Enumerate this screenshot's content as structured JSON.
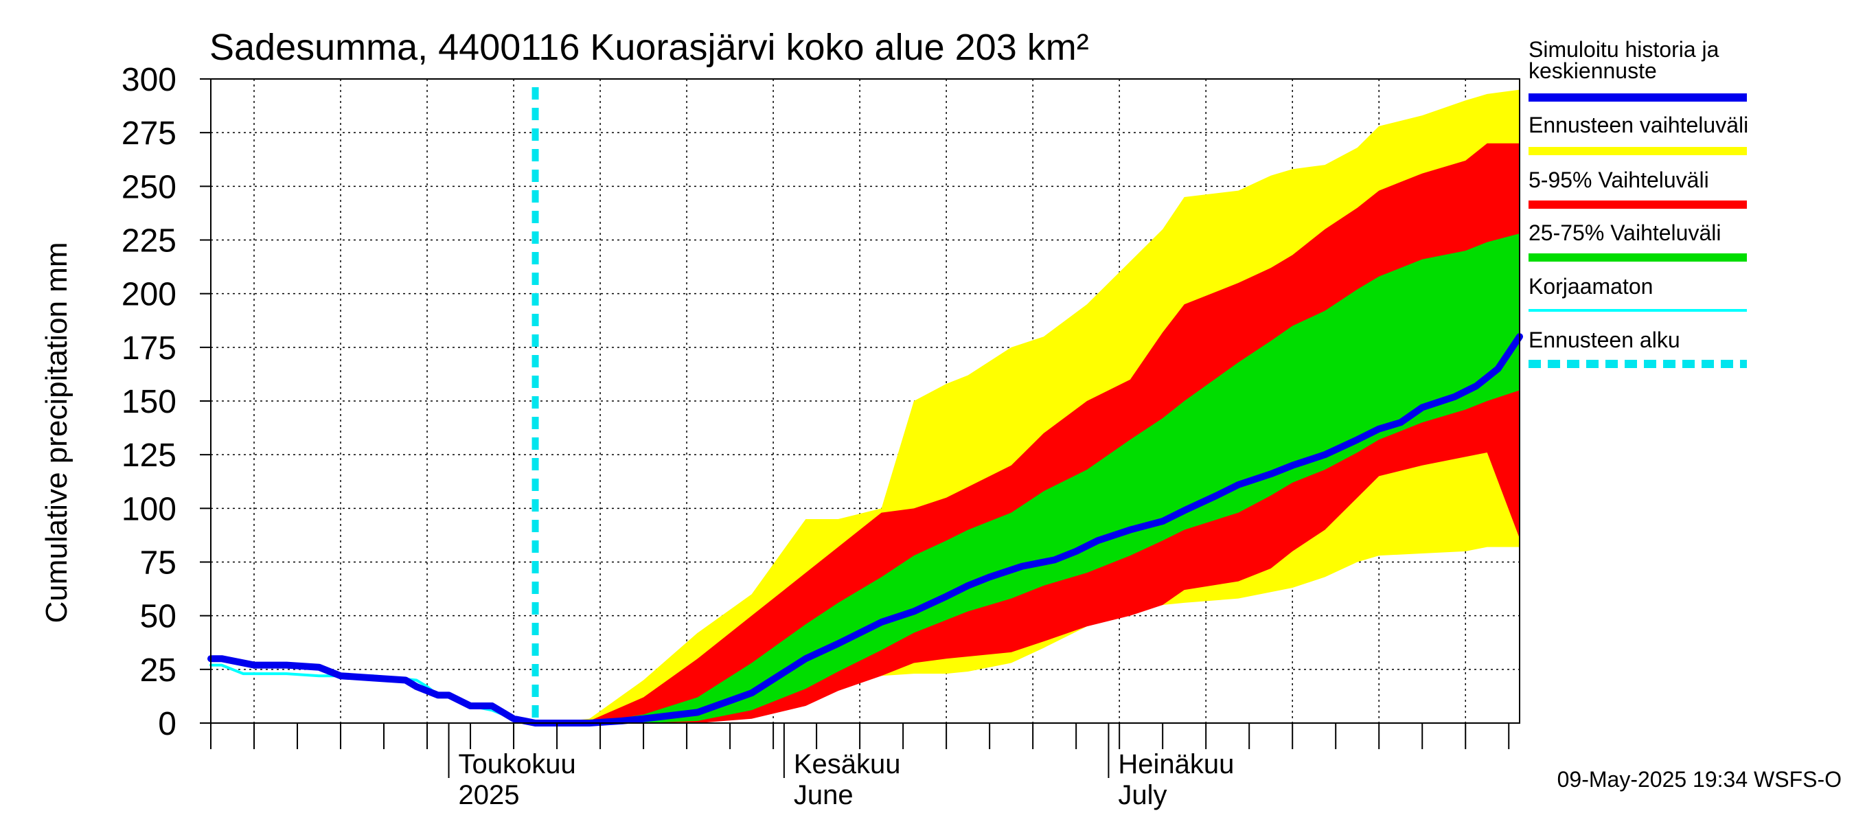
{
  "chart_data": {
    "type": "area",
    "title": "Sadesumma, 4400116 Kuorasjärvi koko alue 203 km²",
    "ylabel": "Cumulative precipitation    mm",
    "xlabel": "",
    "ylim": [
      0,
      300
    ],
    "y_ticks": [
      0,
      25,
      50,
      75,
      100,
      125,
      150,
      175,
      200,
      225,
      250,
      275,
      300
    ],
    "x_range_days": [
      0,
      121
    ],
    "x_axis": {
      "months": [
        {
          "label_fi": "Toukokuu",
          "label_en": "2025",
          "day": 22
        },
        {
          "label_fi": "Kesäkuu",
          "label_en": "June",
          "day": 53
        },
        {
          "label_fi": "Heinäkuu",
          "label_en": "July",
          "day": 83
        }
      ]
    },
    "grid": true,
    "legend_placement": "right",
    "timestamp": "09-May-2025 19:34 WSFS-O",
    "forecast_start_day": 30,
    "series": [
      {
        "name": "Ennusteen vaihteluväli",
        "kind": "band",
        "color": "#ffff00",
        "x": [
          31,
          35,
          40,
          45,
          50,
          55,
          58,
          62,
          65,
          68,
          70,
          74,
          77,
          81,
          85,
          88,
          90,
          95,
          98,
          100,
          103,
          106,
          108,
          112,
          116,
          118,
          121
        ],
        "lo": [
          0,
          0,
          0,
          1,
          4,
          12,
          18,
          22,
          23,
          23,
          24,
          28,
          35,
          45,
          52,
          55,
          56,
          58,
          61,
          63,
          68,
          75,
          78,
          79,
          80,
          82,
          82
        ],
        "hi": [
          0,
          2,
          20,
          42,
          60,
          95,
          95,
          100,
          150,
          158,
          162,
          175,
          180,
          195,
          215,
          230,
          245,
          248,
          255,
          258,
          260,
          268,
          278,
          283,
          290,
          293,
          295
        ]
      },
      {
        "name": "5-95% Vaihteluväli",
        "kind": "band",
        "color": "#ff0000",
        "x": [
          31,
          35,
          40,
          45,
          50,
          55,
          58,
          62,
          65,
          68,
          70,
          74,
          77,
          81,
          85,
          88,
          90,
          95,
          98,
          100,
          103,
          106,
          108,
          112,
          116,
          118,
          121
        ],
        "lo": [
          0,
          0,
          0,
          0,
          2,
          8,
          15,
          22,
          28,
          30,
          31,
          33,
          38,
          45,
          50,
          55,
          62,
          66,
          72,
          80,
          90,
          105,
          115,
          120,
          124,
          126,
          86
        ],
        "hi": [
          0,
          1,
          12,
          30,
          50,
          70,
          82,
          98,
          100,
          105,
          110,
          120,
          135,
          150,
          160,
          182,
          195,
          205,
          212,
          218,
          230,
          240,
          248,
          256,
          262,
          270,
          270
        ]
      },
      {
        "name": "25-75% Vaihteluväli",
        "kind": "band",
        "color": "#00dd00",
        "x": [
          31,
          35,
          40,
          45,
          50,
          55,
          58,
          62,
          65,
          68,
          70,
          74,
          77,
          81,
          85,
          88,
          90,
          95,
          98,
          100,
          103,
          106,
          108,
          112,
          116,
          118,
          121
        ],
        "lo": [
          0,
          0,
          0,
          1,
          6,
          16,
          24,
          34,
          42,
          48,
          52,
          58,
          64,
          70,
          78,
          85,
          90,
          98,
          106,
          112,
          118,
          126,
          132,
          140,
          146,
          150,
          155
        ],
        "hi": [
          0,
          0,
          4,
          12,
          28,
          46,
          56,
          68,
          78,
          85,
          90,
          98,
          108,
          118,
          132,
          142,
          150,
          168,
          178,
          185,
          192,
          202,
          208,
          216,
          220,
          224,
          228
        ]
      },
      {
        "name": "Korjaamaton",
        "kind": "line",
        "color": "#00ffff",
        "x": [
          0,
          1,
          3,
          7,
          10,
          15,
          19,
          20,
          21,
          22,
          24,
          26,
          28,
          30
        ],
        "y": [
          27,
          27,
          23,
          23,
          22,
          22,
          20,
          17,
          13,
          12,
          8,
          6,
          2,
          0
        ]
      },
      {
        "name": "Simuloitu historia ja keskiennuste",
        "kind": "line",
        "color": "#0000ee",
        "x": [
          0,
          1,
          4,
          7,
          10,
          12,
          15,
          18,
          19,
          20,
          21,
          22,
          24,
          26,
          28,
          30,
          33,
          35,
          38,
          40,
          45,
          50,
          55,
          58,
          62,
          65,
          68,
          70,
          72,
          75,
          78,
          80,
          82,
          85,
          88,
          90,
          93,
          95,
          98,
          100,
          103,
          106,
          108,
          110,
          112,
          115,
          117,
          119,
          121
        ],
        "y": [
          30,
          30,
          27,
          27,
          26,
          22,
          21,
          20,
          17,
          15,
          13,
          13,
          8,
          8,
          2,
          0,
          0,
          0,
          1,
          2,
          5,
          14,
          30,
          37,
          47,
          52,
          59,
          64,
          68,
          73,
          76,
          80,
          85,
          90,
          94,
          99,
          106,
          111,
          116,
          120,
          125,
          132,
          137,
          140,
          147,
          152,
          157,
          165,
          180
        ]
      }
    ],
    "legend": [
      {
        "label": "Simuloitu historia ja keskiennuste",
        "color": "#0000ee",
        "style": "thick"
      },
      {
        "label": "Ennusteen vaihteluväli",
        "color": "#ffff00",
        "style": "thick"
      },
      {
        "label": "5-95% Vaihteluväli",
        "color": "#ff0000",
        "style": "thick"
      },
      {
        "label": "25-75% Vaihteluväli",
        "color": "#00dd00",
        "style": "thick"
      },
      {
        "label": "Korjaamaton",
        "color": "#00ffff",
        "style": "thin"
      },
      {
        "label": "Ennusteen alku",
        "color": "#00e5ee",
        "style": "dashed"
      }
    ]
  }
}
